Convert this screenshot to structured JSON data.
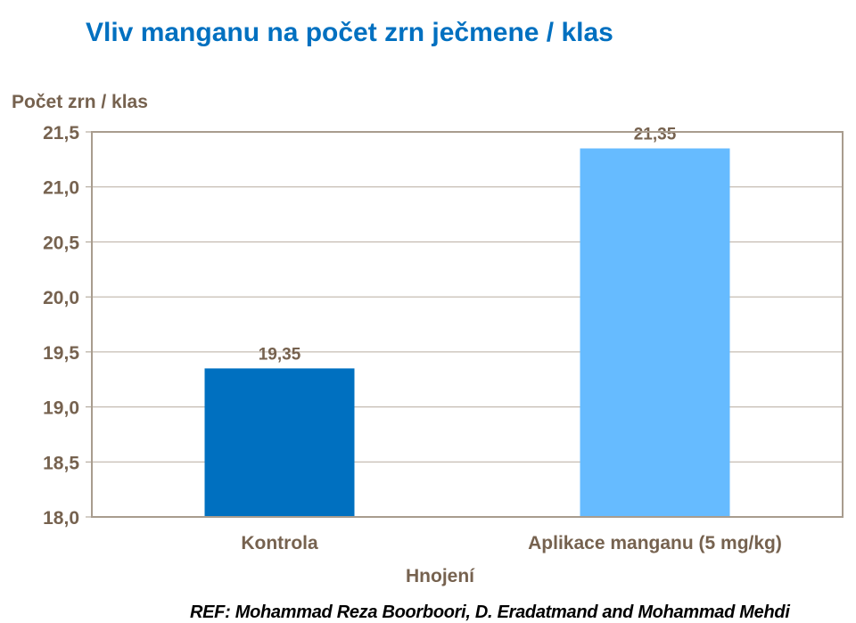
{
  "chart_data": {
    "type": "bar",
    "title": "Vliv manganu na počet zrn ječmene / klas",
    "xlabel": "Hnojení",
    "ylabel": "Počet zrn / klas",
    "categories": [
      "Kontrola",
      "Aplikace manganu (5 mg/kg)"
    ],
    "values": [
      19.35,
      21.35
    ],
    "data_labels": [
      "19,35",
      "21,35"
    ],
    "colors": [
      "#0070C0",
      "#66BBFF"
    ],
    "ylim": [
      18.0,
      21.5
    ],
    "yticks": [
      18.0,
      18.5,
      19.0,
      19.5,
      20.0,
      20.5,
      21.0,
      21.5
    ],
    "ytick_labels": [
      "18,0",
      "18,5",
      "19,0",
      "19,5",
      "20,0",
      "20,5",
      "21,0",
      "21,5"
    ],
    "grid": true,
    "legend": "none"
  },
  "reference": "REF: Mohammad Reza Boorboori, D. Eradatmand and Mohammad Mehdi"
}
